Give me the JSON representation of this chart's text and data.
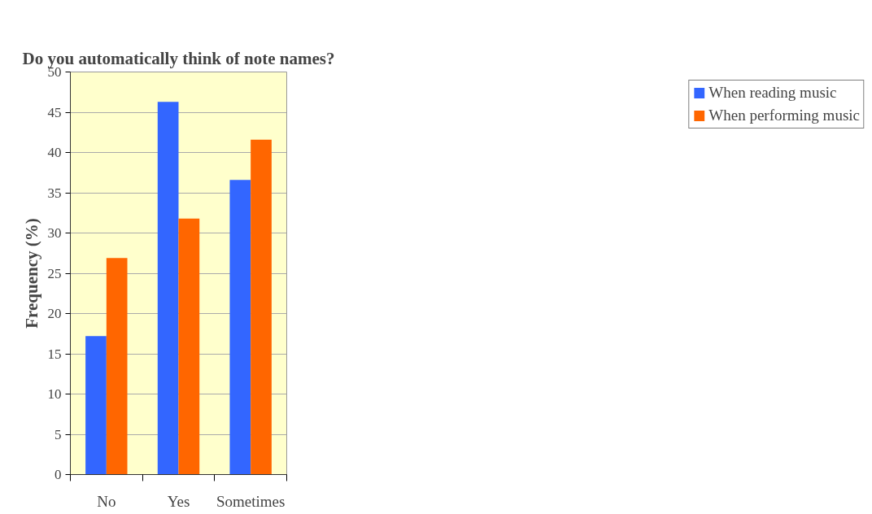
{
  "chart_data": {
    "type": "bar",
    "title": "Do you automatically think of note names?",
    "ylabel": "Frequency (%)",
    "categories": [
      "No",
      "Yes",
      "Sometimes"
    ],
    "series": [
      {
        "name": "When reading music",
        "color": "#3366ff",
        "values": [
          17.2,
          46.3,
          36.6
        ]
      },
      {
        "name": "When performing music",
        "color": "#ff6600",
        "values": [
          26.9,
          31.8,
          41.6
        ]
      }
    ],
    "ylim": [
      0,
      50
    ],
    "yticks": [
      0,
      5,
      10,
      15,
      20,
      25,
      30,
      35,
      40,
      45,
      50
    ],
    "grid": "y",
    "legend": "right"
  }
}
